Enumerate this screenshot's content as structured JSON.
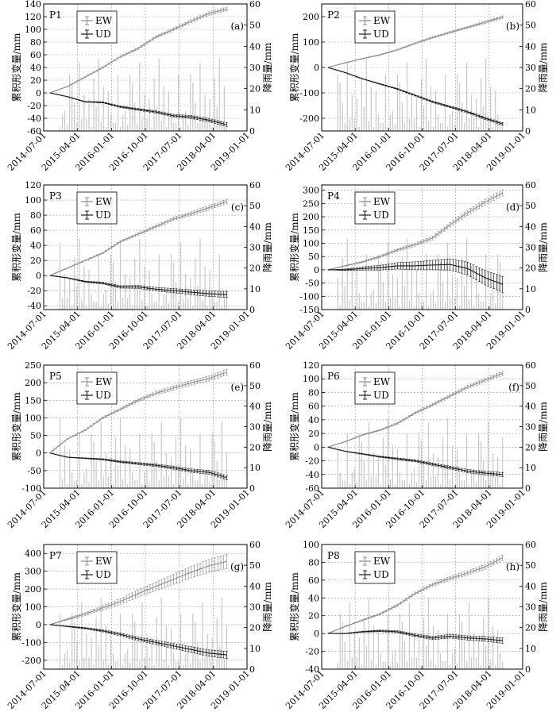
{
  "figure": {
    "x_ticks": [
      "2014-07-01",
      "2015-04-01",
      "2016-01-01",
      "2016-10-01",
      "2017-07-01",
      "2018-04-01",
      "2019-01-01"
    ],
    "left_axis_label": "累积形变量/mm",
    "right_axis_label": "降雨量/mm",
    "legend": [
      "EW",
      "UD"
    ],
    "colors": {
      "ew": "#8c8c8c",
      "ud": "#1a1a1a",
      "rain": "#c8c8c8"
    }
  },
  "chart_data": [
    {
      "type": "line",
      "title": "P1",
      "letter": "(a)",
      "ylim": [
        -60,
        140
      ],
      "y_ticks": [
        -60,
        -40,
        -20,
        0,
        20,
        40,
        60,
        80,
        100,
        120,
        140
      ],
      "rain_ylim": [
        0,
        60
      ],
      "rain_ticks": [
        0,
        10,
        20,
        30,
        40,
        50,
        60
      ],
      "series": [
        {
          "name": "EW",
          "points": [
            [
              0,
              0
            ],
            [
              0.1,
              10
            ],
            [
              0.2,
              25
            ],
            [
              0.3,
              40
            ],
            [
              0.4,
              57
            ],
            [
              0.5,
              70
            ],
            [
              0.6,
              88
            ],
            [
              0.7,
              100
            ],
            [
              0.8,
              113
            ],
            [
              0.9,
              125
            ],
            [
              1.0,
              132
            ]
          ],
          "err": [
            0,
            3
          ]
        },
        {
          "name": "UD",
          "points": [
            [
              0,
              0
            ],
            [
              0.1,
              -6
            ],
            [
              0.2,
              -14
            ],
            [
              0.3,
              -15
            ],
            [
              0.4,
              -22
            ],
            [
              0.5,
              -26
            ],
            [
              0.6,
              -30
            ],
            [
              0.7,
              -36
            ],
            [
              0.8,
              -38
            ],
            [
              0.9,
              -43
            ],
            [
              1.0,
              -50
            ]
          ],
          "err": [
            0,
            3
          ]
        }
      ]
    },
    {
      "type": "line",
      "title": "P2",
      "letter": "(b)",
      "ylim": [
        -250,
        250
      ],
      "y_ticks": [
        -200,
        -100,
        0,
        100,
        200
      ],
      "rain_ylim": [
        0,
        60
      ],
      "rain_ticks": [
        0,
        10,
        20,
        30,
        40,
        50,
        60
      ],
      "series": [
        {
          "name": "EW",
          "points": [
            [
              0,
              0
            ],
            [
              0.1,
              18
            ],
            [
              0.2,
              35
            ],
            [
              0.3,
              50
            ],
            [
              0.4,
              70
            ],
            [
              0.5,
              95
            ],
            [
              0.6,
              118
            ],
            [
              0.7,
              138
            ],
            [
              0.8,
              158
            ],
            [
              0.9,
              178
            ],
            [
              1.0,
              198
            ]
          ],
          "err": [
            0,
            5
          ]
        },
        {
          "name": "UD",
          "points": [
            [
              0,
              0
            ],
            [
              0.1,
              -20
            ],
            [
              0.2,
              -45
            ],
            [
              0.3,
              -65
            ],
            [
              0.4,
              -85
            ],
            [
              0.5,
              -110
            ],
            [
              0.6,
              -135
            ],
            [
              0.7,
              -155
            ],
            [
              0.8,
              -175
            ],
            [
              0.9,
              -200
            ],
            [
              1.0,
              -222
            ]
          ],
          "err": [
            0,
            5
          ]
        }
      ]
    },
    {
      "type": "line",
      "title": "P3",
      "letter": "(c)",
      "ylim": [
        -45,
        120
      ],
      "y_ticks": [
        -40,
        -20,
        0,
        20,
        40,
        60,
        80,
        100,
        120
      ],
      "rain_ylim": [
        0,
        60
      ],
      "rain_ticks": [
        0,
        10,
        20,
        30,
        40,
        50,
        60
      ],
      "series": [
        {
          "name": "EW",
          "points": [
            [
              0,
              0
            ],
            [
              0.1,
              10
            ],
            [
              0.2,
              20
            ],
            [
              0.3,
              30
            ],
            [
              0.4,
              45
            ],
            [
              0.5,
              55
            ],
            [
              0.6,
              65
            ],
            [
              0.7,
              75
            ],
            [
              0.8,
              82
            ],
            [
              0.9,
              90
            ],
            [
              1.0,
              98
            ]
          ],
          "err": [
            0,
            3
          ]
        },
        {
          "name": "UD",
          "points": [
            [
              0,
              0
            ],
            [
              0.1,
              -3
            ],
            [
              0.2,
              -8
            ],
            [
              0.3,
              -10
            ],
            [
              0.4,
              -15
            ],
            [
              0.5,
              -15
            ],
            [
              0.6,
              -18
            ],
            [
              0.7,
              -20
            ],
            [
              0.8,
              -22
            ],
            [
              0.9,
              -24
            ],
            [
              1.0,
              -25
            ]
          ],
          "err": [
            0,
            4
          ]
        }
      ]
    },
    {
      "type": "line",
      "title": "P4",
      "letter": "(d)",
      "ylim": [
        -150,
        320
      ],
      "y_ticks": [
        -150,
        -100,
        -50,
        0,
        50,
        100,
        150,
        200,
        250,
        300
      ],
      "rain_ylim": [
        0,
        60
      ],
      "rain_ticks": [
        0,
        10,
        20,
        30,
        40,
        50,
        60
      ],
      "series": [
        {
          "name": "EW",
          "points": [
            [
              0,
              0
            ],
            [
              0.1,
              15
            ],
            [
              0.2,
              30
            ],
            [
              0.3,
              50
            ],
            [
              0.4,
              75
            ],
            [
              0.5,
              95
            ],
            [
              0.6,
              120
            ],
            [
              0.7,
              170
            ],
            [
              0.8,
              215
            ],
            [
              0.9,
              255
            ],
            [
              1.0,
              290
            ]
          ],
          "err": [
            0,
            12
          ]
        },
        {
          "name": "UD",
          "points": [
            [
              0,
              0
            ],
            [
              0.1,
              0
            ],
            [
              0.2,
              5
            ],
            [
              0.3,
              8
            ],
            [
              0.4,
              15
            ],
            [
              0.5,
              15
            ],
            [
              0.6,
              18
            ],
            [
              0.7,
              20
            ],
            [
              0.8,
              5
            ],
            [
              0.9,
              -30
            ],
            [
              1.0,
              -55
            ]
          ],
          "err": [
            0,
            30
          ]
        }
      ]
    },
    {
      "type": "line",
      "title": "P5",
      "letter": "(e)",
      "ylim": [
        -100,
        250
      ],
      "y_ticks": [
        -100,
        -50,
        0,
        50,
        100,
        150,
        200,
        250
      ],
      "rain_ylim": [
        0,
        60
      ],
      "rain_ticks": [
        0,
        10,
        20,
        30,
        40,
        50,
        60
      ],
      "series": [
        {
          "name": "EW",
          "points": [
            [
              0,
              0
            ],
            [
              0.1,
              40
            ],
            [
              0.2,
              65
            ],
            [
              0.3,
              100
            ],
            [
              0.4,
              125
            ],
            [
              0.5,
              150
            ],
            [
              0.6,
              170
            ],
            [
              0.7,
              185
            ],
            [
              0.8,
              200
            ],
            [
              0.9,
              212
            ],
            [
              1.0,
              230
            ]
          ],
          "err": [
            0,
            8
          ]
        },
        {
          "name": "UD",
          "points": [
            [
              0,
              0
            ],
            [
              0.1,
              -12
            ],
            [
              0.2,
              -15
            ],
            [
              0.3,
              -18
            ],
            [
              0.4,
              -25
            ],
            [
              0.5,
              -30
            ],
            [
              0.6,
              -35
            ],
            [
              0.7,
              -42
            ],
            [
              0.8,
              -50
            ],
            [
              0.9,
              -55
            ],
            [
              1.0,
              -70
            ]
          ],
          "err": [
            0,
            6
          ]
        }
      ]
    },
    {
      "type": "line",
      "title": "P6",
      "letter": "(f)",
      "ylim": [
        -60,
        120
      ],
      "y_ticks": [
        -60,
        -40,
        -20,
        0,
        20,
        40,
        60,
        80,
        100,
        120
      ],
      "rain_ylim": [
        0,
        60
      ],
      "rain_ticks": [
        0,
        10,
        20,
        30,
        40,
        50,
        60
      ],
      "series": [
        {
          "name": "EW",
          "points": [
            [
              0,
              0
            ],
            [
              0.1,
              8
            ],
            [
              0.2,
              18
            ],
            [
              0.3,
              25
            ],
            [
              0.4,
              35
            ],
            [
              0.5,
              50
            ],
            [
              0.6,
              62
            ],
            [
              0.7,
              75
            ],
            [
              0.8,
              88
            ],
            [
              0.9,
              98
            ],
            [
              1.0,
              108
            ]
          ],
          "err": [
            0,
            3
          ]
        },
        {
          "name": "UD",
          "points": [
            [
              0,
              0
            ],
            [
              0.1,
              -6
            ],
            [
              0.2,
              -10
            ],
            [
              0.3,
              -14
            ],
            [
              0.4,
              -17
            ],
            [
              0.5,
              -20
            ],
            [
              0.6,
              -25
            ],
            [
              0.7,
              -30
            ],
            [
              0.8,
              -35
            ],
            [
              0.9,
              -38
            ],
            [
              1.0,
              -40
            ]
          ],
          "err": [
            0,
            3
          ]
        }
      ]
    },
    {
      "type": "line",
      "title": "P7",
      "letter": "(g)",
      "ylim": [
        -250,
        450
      ],
      "y_ticks": [
        -200,
        -100,
        0,
        100,
        200,
        300,
        400
      ],
      "rain_ylim": [
        0,
        60
      ],
      "rain_ticks": [
        0,
        10,
        20,
        30,
        40,
        50,
        60
      ],
      "series": [
        {
          "name": "EW",
          "points": [
            [
              0,
              0
            ],
            [
              0.1,
              30
            ],
            [
              0.2,
              60
            ],
            [
              0.3,
              95
            ],
            [
              0.4,
              130
            ],
            [
              0.5,
              175
            ],
            [
              0.6,
              215
            ],
            [
              0.7,
              255
            ],
            [
              0.8,
              295
            ],
            [
              0.9,
              330
            ],
            [
              1.0,
              355
            ]
          ],
          "err": [
            0,
            40
          ]
        },
        {
          "name": "UD",
          "points": [
            [
              0,
              0
            ],
            [
              0.1,
              -10
            ],
            [
              0.2,
              -20
            ],
            [
              0.3,
              -35
            ],
            [
              0.4,
              -55
            ],
            [
              0.5,
              -80
            ],
            [
              0.6,
              -100
            ],
            [
              0.7,
              -120
            ],
            [
              0.8,
              -140
            ],
            [
              0.9,
              -160
            ],
            [
              1.0,
              -170
            ]
          ],
          "err": [
            0,
            20
          ]
        }
      ]
    },
    {
      "type": "line",
      "title": "P8",
      "letter": "(h)",
      "ylim": [
        -40,
        100
      ],
      "y_ticks": [
        -40,
        -20,
        0,
        20,
        40,
        60,
        80,
        100
      ],
      "rain_ylim": [
        0,
        60
      ],
      "rain_ticks": [
        0,
        10,
        20,
        30,
        40,
        50,
        60
      ],
      "series": [
        {
          "name": "EW",
          "points": [
            [
              0,
              0
            ],
            [
              0.1,
              8
            ],
            [
              0.2,
              15
            ],
            [
              0.3,
              22
            ],
            [
              0.4,
              32
            ],
            [
              0.5,
              45
            ],
            [
              0.6,
              55
            ],
            [
              0.7,
              62
            ],
            [
              0.8,
              68
            ],
            [
              0.9,
              75
            ],
            [
              1.0,
              85
            ]
          ],
          "err": [
            0,
            3
          ]
        },
        {
          "name": "UD",
          "points": [
            [
              0,
              0
            ],
            [
              0.1,
              0
            ],
            [
              0.2,
              2
            ],
            [
              0.3,
              3
            ],
            [
              0.4,
              2
            ],
            [
              0.5,
              -2
            ],
            [
              0.6,
              -5
            ],
            [
              0.7,
              -3
            ],
            [
              0.8,
              -5
            ],
            [
              0.9,
              -6
            ],
            [
              1.0,
              -8
            ]
          ],
          "err": [
            0,
            3
          ]
        }
      ]
    }
  ]
}
